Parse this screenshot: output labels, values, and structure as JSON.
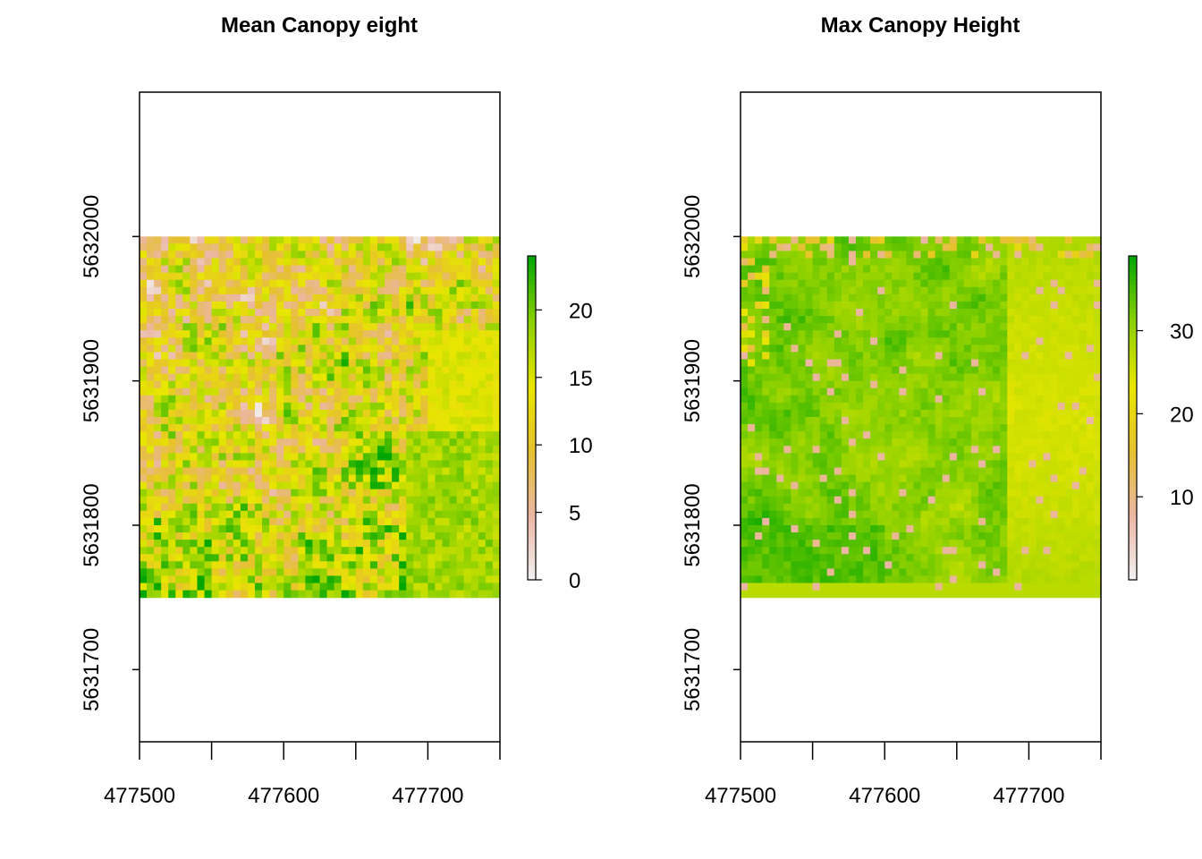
{
  "chart_data": [
    {
      "type": "heatmap",
      "title": "Mean Canopy eight",
      "x_range": [
        477500,
        477750
      ],
      "y_range": [
        5631750,
        5632000
      ],
      "xlim": [
        477500,
        477750
      ],
      "ylim": [
        5631650,
        5632100
      ],
      "x_ticks": [
        477500,
        477550,
        477600,
        477650,
        477700,
        477750
      ],
      "x_tick_labels": [
        "477500",
        "",
        "477600",
        "",
        "477700",
        ""
      ],
      "y_ticks": [
        5631700,
        5631800,
        5631900,
        5632000
      ],
      "y_tick_labels": [
        "5631700",
        "5631800",
        "5631900",
        "5632000"
      ],
      "value_range": [
        0,
        24
      ],
      "legend_ticks": [
        0,
        5,
        10,
        15,
        20
      ],
      "legend_tick_labels": [
        "0",
        "5",
        "10",
        "15",
        "20"
      ],
      "legend_position": "right",
      "colormap": [
        "#F2F2F2",
        "#EBB6A4",
        "#E6C12E",
        "#E8E600",
        "#8BD000",
        "#00A600"
      ],
      "grid_cells": [
        50,
        50
      ],
      "seed": 7,
      "pattern": "mean"
    },
    {
      "type": "heatmap",
      "title": "Max Canopy Height",
      "x_range": [
        477500,
        477750
      ],
      "y_range": [
        5631750,
        5632000
      ],
      "xlim": [
        477500,
        477750
      ],
      "ylim": [
        5631650,
        5632100
      ],
      "x_ticks": [
        477500,
        477550,
        477600,
        477650,
        477700,
        477750
      ],
      "x_tick_labels": [
        "477500",
        "",
        "477600",
        "",
        "477700",
        ""
      ],
      "y_ticks": [
        5631700,
        5631800,
        5631900,
        5632000
      ],
      "y_tick_labels": [
        "5631700",
        "5631800",
        "5631900",
        "5632000"
      ],
      "value_range": [
        0,
        39
      ],
      "legend_ticks": [
        10,
        20,
        30
      ],
      "legend_tick_labels": [
        "10",
        "20",
        "30"
      ],
      "legend_position": "right",
      "colormap": [
        "#F2F2F2",
        "#EBB6A4",
        "#E6C12E",
        "#E8E600",
        "#8BD000",
        "#00A600"
      ],
      "grid_cells": [
        50,
        50
      ],
      "seed": 13,
      "pattern": "max"
    }
  ]
}
